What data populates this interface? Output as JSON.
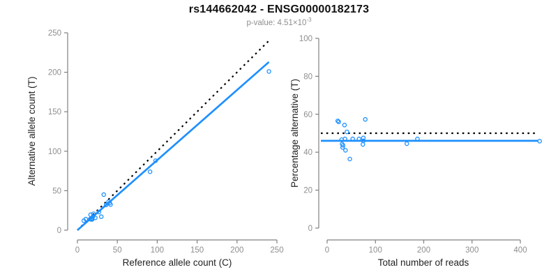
{
  "header": {
    "title": "rs144662042 - ENSG00000182173",
    "subtitle_prefix": "p-value: 4.51×10",
    "subtitle_exponent": "-3"
  },
  "colors": {
    "accent": "#1e90ff",
    "reference_line": "#000000",
    "axis": "#808080",
    "tick_label": "#8e8e8e",
    "axis_title": "#222222",
    "title": "#111111",
    "subtitle": "#8e8e8e"
  },
  "chart_data": [
    {
      "type": "scatter",
      "panel": "left",
      "xlabel": "Reference allele count (C)",
      "ylabel": "Alternative allele count (T)",
      "xlim": [
        0,
        250
      ],
      "ylim": [
        0,
        250
      ],
      "xticks": [
        0,
        50,
        100,
        150,
        200,
        250
      ],
      "yticks": [
        0,
        50,
        100,
        150,
        200,
        250
      ],
      "grid": false,
      "points": [
        [
          8,
          12
        ],
        [
          10.5,
          14
        ],
        [
          16.5,
          19.5
        ],
        [
          33,
          45
        ],
        [
          20.2,
          20.8
        ],
        [
          16,
          14
        ],
        [
          19.6,
          17.4
        ],
        [
          27,
          23
        ],
        [
          36,
          32
        ],
        [
          39,
          36
        ],
        [
          40.5,
          34.5
        ],
        [
          41.5,
          32.5
        ],
        [
          17.3,
          13.7
        ],
        [
          18.6,
          14.4
        ],
        [
          18.4,
          13.6
        ],
        [
          22.4,
          15.6
        ],
        [
          29.9,
          17.1
        ],
        [
          91,
          74
        ],
        [
          98,
          88
        ],
        [
          240,
          201
        ]
      ],
      "lines": [
        {
          "name": "identity-line",
          "kind": "segment",
          "x1": 0,
          "y1": 0,
          "x2": 242,
          "y2": 242,
          "dash": true,
          "color": "#000000",
          "width": 2.2
        },
        {
          "name": "fit-line",
          "kind": "segment",
          "x1": 0,
          "y1": 0,
          "x2": 240,
          "y2": 213,
          "dash": false,
          "color": "#1e90ff",
          "width": 2.7
        }
      ]
    },
    {
      "type": "scatter",
      "panel": "right",
      "xlabel": "Total number of reads",
      "ylabel": "Percentage alternative (T)",
      "xlim": [
        0,
        450
      ],
      "ylim": [
        0,
        100
      ],
      "xticks": [
        0,
        100,
        200,
        300,
        400
      ],
      "yticks": [
        0,
        20,
        40,
        60,
        80,
        100
      ],
      "grid": false,
      "points": [
        [
          22,
          56.5
        ],
        [
          24,
          56
        ],
        [
          36,
          54.3
        ],
        [
          79,
          57.3
        ],
        [
          41,
          50.7
        ],
        [
          30,
          46.6
        ],
        [
          37,
          47
        ],
        [
          53,
          47
        ],
        [
          66,
          47
        ],
        [
          75,
          47.5
        ],
        [
          75,
          46
        ],
        [
          74,
          44.1
        ],
        [
          31,
          44.3
        ],
        [
          33,
          43.6
        ],
        [
          32,
          42.5
        ],
        [
          38,
          41
        ],
        [
          47,
          36.4
        ],
        [
          165,
          44.5
        ],
        [
          187,
          47
        ],
        [
          440,
          45.8
        ]
      ],
      "lines": [
        {
          "name": "null-line",
          "kind": "hline",
          "y": 50,
          "dash": true,
          "color": "#000000",
          "width": 2.2
        },
        {
          "name": "fit-line",
          "kind": "hline",
          "y": 46,
          "dash": false,
          "color": "#1e90ff",
          "width": 2.7
        }
      ]
    }
  ]
}
